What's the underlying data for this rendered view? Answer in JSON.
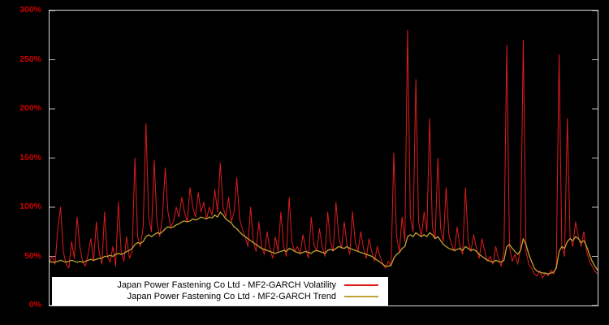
{
  "window": {
    "background": "#000000",
    "plot_border_color": "#dcdcdc"
  },
  "chart_data": {
    "type": "line",
    "title": "",
    "xlabel": "",
    "ylabel": "",
    "ylim": [
      0,
      300
    ],
    "grid": false,
    "legend_position": "bottom-left-inside",
    "ytick_label_color": "#cc0000",
    "yticks": [
      {
        "value": 0,
        "label": "0%"
      },
      {
        "value": 50,
        "label": "50%"
      },
      {
        "value": 100,
        "label": "100%"
      },
      {
        "value": 150,
        "label": "150%"
      },
      {
        "value": 200,
        "label": "200%"
      },
      {
        "value": 250,
        "label": "250%"
      },
      {
        "value": 300,
        "label": "300%"
      }
    ],
    "series": [
      {
        "name": "Japan Power Fastening Co Ltd - MF2-GARCH Volatility",
        "color": "#dd1c1c",
        "stroke_width": 1,
        "values": [
          45,
          50,
          42,
          78,
          100,
          55,
          42,
          38,
          65,
          48,
          90,
          60,
          45,
          40,
          52,
          68,
          45,
          85,
          55,
          42,
          95,
          50,
          44,
          60,
          40,
          105,
          55,
          45,
          70,
          48,
          55,
          150,
          70,
          60,
          80,
          185,
          90,
          75,
          148,
          85,
          70,
          90,
          140,
          95,
          80,
          85,
          100,
          90,
          110,
          95,
          85,
          120,
          100,
          90,
          115,
          95,
          105,
          88,
          100,
          92,
          118,
          95,
          145,
          100,
          90,
          110,
          85,
          95,
          130,
          88,
          78,
          70,
          60,
          100,
          65,
          55,
          85,
          60,
          52,
          75,
          58,
          48,
          70,
          55,
          95,
          60,
          50,
          110,
          65,
          55,
          60,
          52,
          72,
          58,
          48,
          90,
          62,
          55,
          78,
          60,
          50,
          95,
          65,
          55,
          105,
          70,
          58,
          85,
          62,
          52,
          95,
          65,
          55,
          75,
          58,
          48,
          68,
          55,
          45,
          60,
          50,
          42,
          38,
          45,
          40,
          155,
          70,
          55,
          90,
          65,
          280,
          90,
          75,
          230,
          85,
          70,
          95,
          75,
          190,
          80,
          68,
          150,
          78,
          65,
          120,
          72,
          62,
          55,
          80,
          60,
          52,
          120,
          65,
          55,
          72,
          58,
          48,
          68,
          55,
          45,
          50,
          42,
          60,
          48,
          40,
          55,
          265,
          60,
          45,
          52,
          42,
          58,
          270,
          55,
          42,
          38,
          32,
          30,
          35,
          28,
          33,
          30,
          36,
          32,
          40,
          255,
          60,
          50,
          190,
          70,
          60,
          85,
          70,
          60,
          75,
          55,
          45,
          40,
          35,
          32
        ]
      },
      {
        "name": "Japan Power Fastening Co Ltd - MF2-GARCH Trend",
        "color": "#c2a233",
        "stroke_width": 1.3,
        "values": [
          45,
          44,
          44,
          45,
          46,
          45,
          44,
          45,
          46,
          45,
          44,
          45,
          44,
          45,
          46,
          47,
          46,
          47,
          48,
          48,
          50,
          50,
          51,
          50,
          52,
          53,
          52,
          53,
          55,
          56,
          58,
          62,
          64,
          63,
          65,
          70,
          72,
          70,
          72,
          74,
          73,
          75,
          78,
          80,
          79,
          80,
          82,
          83,
          85,
          86,
          85,
          86,
          88,
          87,
          88,
          90,
          89,
          88,
          90,
          89,
          92,
          90,
          95,
          92,
          88,
          86,
          84,
          80,
          78,
          75,
          72,
          70,
          68,
          66,
          64,
          62,
          60,
          58,
          57,
          56,
          55,
          54,
          53,
          54,
          55,
          56,
          55,
          58,
          57,
          55,
          54,
          53,
          54,
          55,
          54,
          53,
          55,
          56,
          55,
          54,
          53,
          56,
          57,
          56,
          58,
          60,
          59,
          58,
          60,
          58,
          57,
          56,
          55,
          54,
          53,
          52,
          51,
          50,
          48,
          46,
          44,
          42,
          40,
          40,
          41,
          48,
          52,
          54,
          58,
          60,
          70,
          72,
          70,
          74,
          72,
          70,
          72,
          70,
          74,
          72,
          68,
          70,
          66,
          62,
          60,
          58,
          57,
          56,
          57,
          58,
          56,
          60,
          58,
          56,
          57,
          55,
          52,
          50,
          48,
          46,
          45,
          44,
          46,
          45,
          44,
          46,
          60,
          62,
          58,
          55,
          52,
          56,
          68,
          62,
          52,
          45,
          38,
          35,
          34,
          33,
          33,
          32,
          33,
          34,
          38,
          55,
          60,
          58,
          65,
          68,
          66,
          70,
          68,
          64,
          66,
          60,
          52,
          45,
          40,
          36
        ]
      }
    ]
  }
}
